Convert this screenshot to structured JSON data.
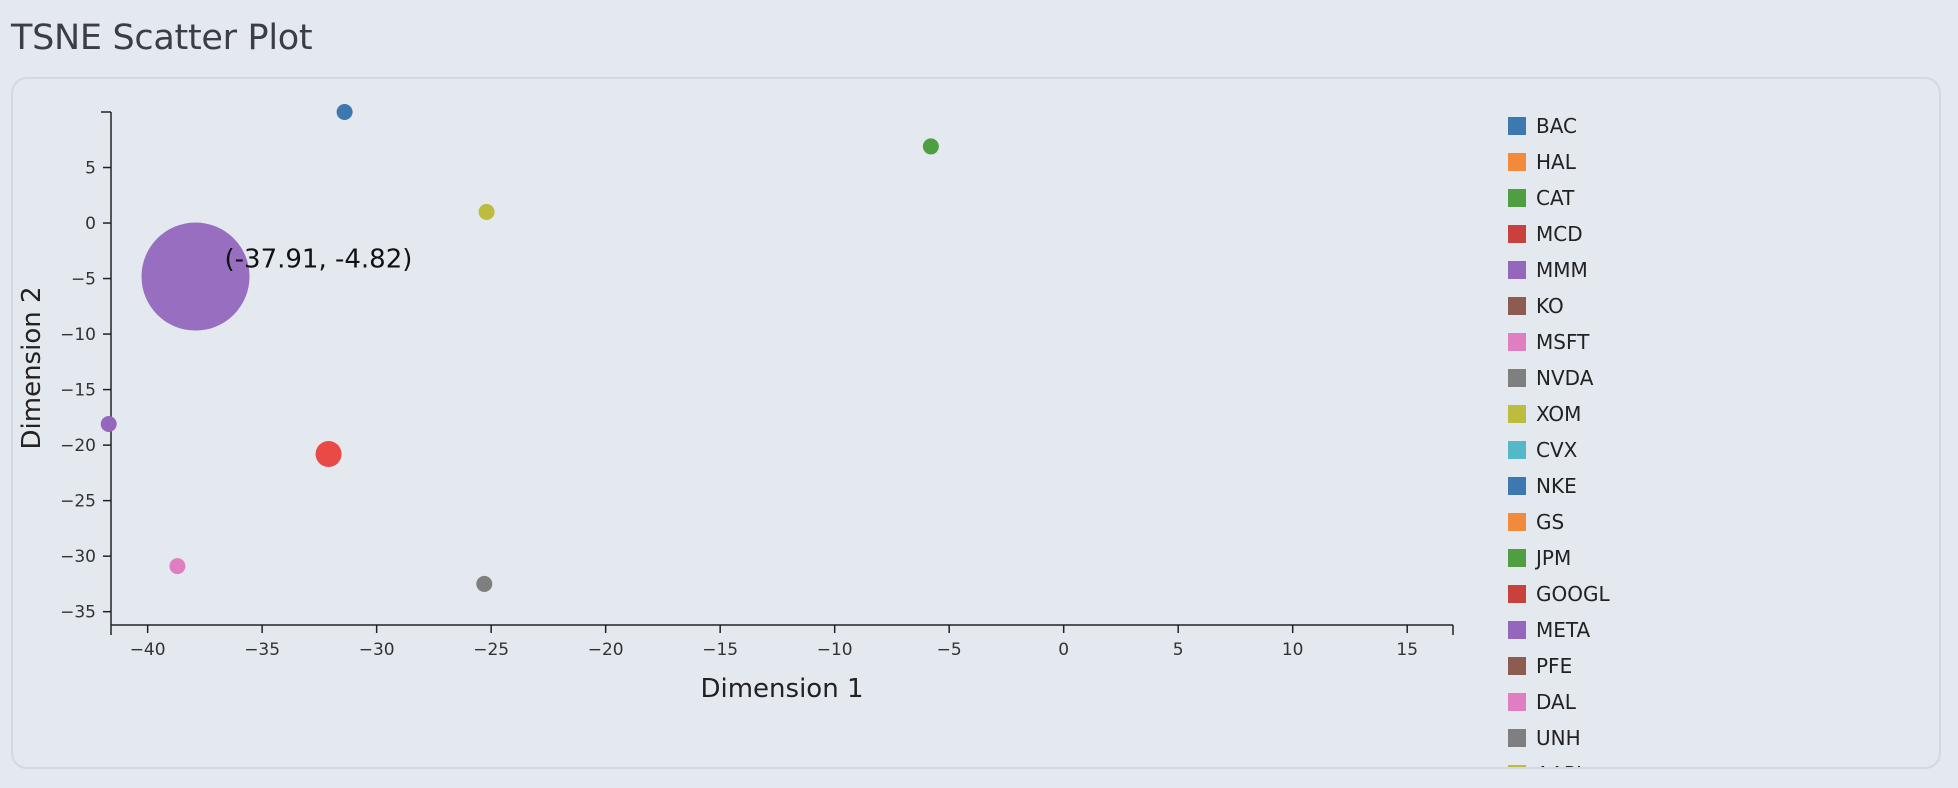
{
  "page": {
    "title": "TSNE Scatter Plot"
  },
  "chart_data": {
    "type": "scatter",
    "title": "",
    "xlabel": "Dimension 1",
    "ylabel": "Dimension 2",
    "xlim": [
      -41.6,
      17
    ],
    "ylim": [
      -36.2,
      10
    ],
    "xticks": [
      -40,
      -35,
      -30,
      -25,
      -20,
      -15,
      -10,
      -5,
      0,
      5,
      10,
      15
    ],
    "yticks": [
      5,
      0,
      -5,
      -10,
      -15,
      -20,
      -25,
      -30,
      -35
    ],
    "grid": false,
    "legend_position": "right",
    "points": [
      {
        "x": -31.4,
        "y": 10.0,
        "color": "#3d78b1",
        "size": "small"
      },
      {
        "x": -5.8,
        "y": 6.9,
        "color": "#4f9e42",
        "size": "small"
      },
      {
        "x": -25.2,
        "y": 1.0,
        "color": "#bcbd3e",
        "size": "small"
      },
      {
        "x": -37.91,
        "y": -4.82,
        "color": "#9467bd",
        "size": "hovered"
      },
      {
        "x": -41.7,
        "y": -18.1,
        "color": "#9467bd",
        "size": "small"
      },
      {
        "x": -32.1,
        "y": -20.8,
        "color": "#ea4a45",
        "size": "medium"
      },
      {
        "x": -38.7,
        "y": -30.9,
        "color": "#df7fc1",
        "size": "small"
      },
      {
        "x": -25.3,
        "y": -32.5,
        "color": "#7f7f7f",
        "size": "small"
      }
    ],
    "tooltip": {
      "label": "(-37.91, -4.82)"
    },
    "legend": [
      {
        "name": "BAC",
        "color": "#3d78b1"
      },
      {
        "name": "HAL",
        "color": "#f28a3b"
      },
      {
        "name": "CAT",
        "color": "#4f9e42"
      },
      {
        "name": "MCD",
        "color": "#c9403c"
      },
      {
        "name": "MMM",
        "color": "#9467bd"
      },
      {
        "name": "KO",
        "color": "#8c5c51"
      },
      {
        "name": "MSFT",
        "color": "#df7fc1"
      },
      {
        "name": "NVDA",
        "color": "#7f7f7f"
      },
      {
        "name": "XOM",
        "color": "#bcbd3e"
      },
      {
        "name": "CVX",
        "color": "#55b8c8"
      },
      {
        "name": "NKE",
        "color": "#3d78b1"
      },
      {
        "name": "GS",
        "color": "#f28a3b"
      },
      {
        "name": "JPM",
        "color": "#4f9e42"
      },
      {
        "name": "GOOGL",
        "color": "#c9403c"
      },
      {
        "name": "META",
        "color": "#9467bd"
      },
      {
        "name": "PFE",
        "color": "#8c5c51"
      },
      {
        "name": "DAL",
        "color": "#df7fc1"
      },
      {
        "name": "UNH",
        "color": "#7f7f7f"
      },
      {
        "name": "AAPL",
        "color": "#bcbd3e"
      }
    ]
  }
}
